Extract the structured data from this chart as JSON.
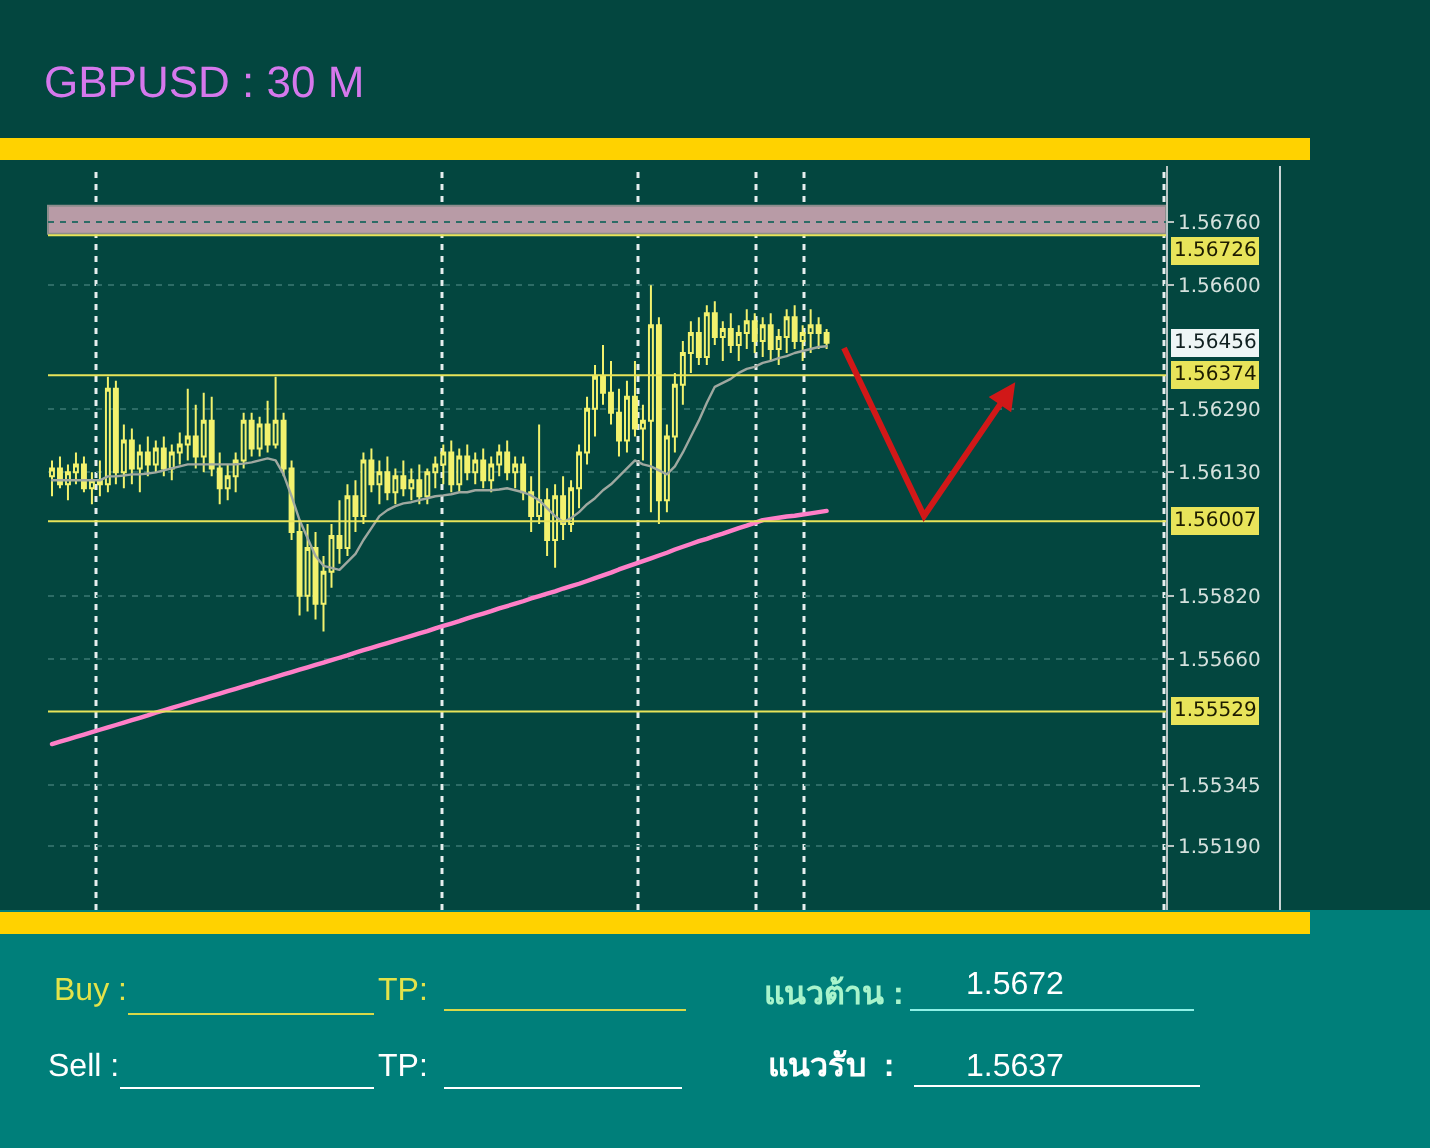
{
  "chart_data": {
    "type": "candlestick",
    "title": "GBPUSD : 30 M",
    "categories": [
      null,
      null,
      null,
      null,
      null,
      null,
      null,
      null,
      null,
      null,
      null,
      null,
      null,
      null,
      null,
      null,
      null,
      null,
      null,
      null,
      null,
      null,
      null,
      null,
      null,
      null,
      null,
      null,
      null,
      null,
      null,
      null,
      null,
      null,
      null,
      null,
      null,
      null,
      null,
      null,
      null,
      null,
      null,
      null,
      null,
      null,
      null,
      null,
      null,
      null,
      null,
      null,
      null,
      null,
      null,
      null,
      null,
      null,
      null,
      null,
      null,
      null,
      null,
      null,
      null,
      null,
      null,
      null,
      null,
      null,
      null,
      null,
      null,
      null,
      null,
      null,
      null,
      null,
      null,
      null,
      null,
      null,
      null,
      null,
      null,
      null,
      null,
      null,
      null,
      null,
      null,
      null,
      null,
      null,
      null,
      null,
      null,
      null,
      null,
      null,
      null,
      null,
      null,
      null,
      null,
      null,
      null,
      null,
      null,
      null,
      null,
      null,
      null,
      null,
      null,
      null,
      null,
      null,
      null,
      null,
      null,
      null,
      null,
      null,
      null,
      null,
      null,
      null,
      null,
      null,
      null,
      null,
      null,
      null,
      null,
      null,
      null,
      null,
      null,
      null
    ],
    "color": "#f2f26e",
    "ohlc": [
      [
        1.5612,
        1.5616,
        1.5607,
        1.5614
      ],
      [
        1.5614,
        1.5617,
        1.5609,
        1.561
      ],
      [
        1.561,
        1.5615,
        1.5606,
        1.5613
      ],
      [
        1.5613,
        1.5618,
        1.561,
        1.5615
      ],
      [
        1.5615,
        1.5617,
        1.5608,
        1.5609
      ],
      [
        1.5609,
        1.5613,
        1.5605,
        1.5611
      ],
      [
        1.5611,
        1.5616,
        1.5607,
        1.561
      ],
      [
        1.561,
        1.5637,
        1.5608,
        1.5634
      ],
      [
        1.5634,
        1.5636,
        1.561,
        1.5613
      ],
      [
        1.5613,
        1.5625,
        1.5609,
        1.5621
      ],
      [
        1.5621,
        1.5624,
        1.561,
        1.5614
      ],
      [
        1.5614,
        1.562,
        1.5608,
        1.5618
      ],
      [
        1.5618,
        1.5622,
        1.5612,
        1.5615
      ],
      [
        1.5615,
        1.5621,
        1.5613,
        1.5619
      ],
      [
        1.5619,
        1.5622,
        1.5612,
        1.5614
      ],
      [
        1.5614,
        1.562,
        1.5611,
        1.5618
      ],
      [
        1.5618,
        1.5623,
        1.5615,
        1.562
      ],
      [
        1.562,
        1.5634,
        1.5616,
        1.5622
      ],
      [
        1.5622,
        1.563,
        1.5614,
        1.5617
      ],
      [
        1.5617,
        1.5633,
        1.5613,
        1.5626
      ],
      [
        1.5626,
        1.5632,
        1.5612,
        1.5614
      ],
      [
        1.5614,
        1.5618,
        1.5605,
        1.5609
      ],
      [
        1.5609,
        1.5615,
        1.5606,
        1.5612
      ],
      [
        1.5612,
        1.5618,
        1.5608,
        1.5616
      ],
      [
        1.5616,
        1.5628,
        1.5614,
        1.5626
      ],
      [
        1.5626,
        1.5628,
        1.5617,
        1.5619
      ],
      [
        1.5619,
        1.5627,
        1.5617,
        1.5625
      ],
      [
        1.5625,
        1.5631,
        1.5618,
        1.562
      ],
      [
        1.562,
        1.5637,
        1.5619,
        1.5626
      ],
      [
        1.5626,
        1.5628,
        1.5612,
        1.5614
      ],
      [
        1.5614,
        1.5616,
        1.5596,
        1.5598
      ],
      [
        1.5598,
        1.5601,
        1.5577,
        1.5582
      ],
      [
        1.5582,
        1.56,
        1.5578,
        1.5594
      ],
      [
        1.5594,
        1.5598,
        1.5576,
        1.558
      ],
      [
        1.558,
        1.5592,
        1.5573,
        1.5588
      ],
      [
        1.5588,
        1.56,
        1.5584,
        1.5597
      ],
      [
        1.5597,
        1.5606,
        1.559,
        1.5594
      ],
      [
        1.5594,
        1.561,
        1.5592,
        1.5607
      ],
      [
        1.5607,
        1.5611,
        1.5598,
        1.5602
      ],
      [
        1.5602,
        1.5618,
        1.56,
        1.5616
      ],
      [
        1.5616,
        1.5619,
        1.5608,
        1.561
      ],
      [
        1.561,
        1.5616,
        1.5605,
        1.5613
      ],
      [
        1.5613,
        1.5617,
        1.5606,
        1.5608
      ],
      [
        1.5608,
        1.5614,
        1.5605,
        1.5612
      ],
      [
        1.5612,
        1.5616,
        1.5607,
        1.5609
      ],
      [
        1.5609,
        1.5614,
        1.5606,
        1.5611
      ],
      [
        1.5611,
        1.5615,
        1.5605,
        1.5607
      ],
      [
        1.5607,
        1.5614,
        1.5605,
        1.5613
      ],
      [
        1.5613,
        1.5617,
        1.5609,
        1.5615
      ],
      [
        1.5615,
        1.562,
        1.561,
        1.5618
      ],
      [
        1.5618,
        1.5621,
        1.5608,
        1.561
      ],
      [
        1.561,
        1.5619,
        1.5608,
        1.5617
      ],
      [
        1.5617,
        1.562,
        1.5611,
        1.5613
      ],
      [
        1.5613,
        1.5618,
        1.561,
        1.5616
      ],
      [
        1.5616,
        1.5619,
        1.5609,
        1.5611
      ],
      [
        1.5611,
        1.5617,
        1.5608,
        1.5615
      ],
      [
        1.5615,
        1.562,
        1.5612,
        1.5618
      ],
      [
        1.5618,
        1.5621,
        1.5611,
        1.5613
      ],
      [
        1.5613,
        1.5617,
        1.5609,
        1.5615
      ],
      [
        1.5615,
        1.5617,
        1.5606,
        1.5608
      ],
      [
        1.5608,
        1.5612,
        1.5598,
        1.5602
      ],
      [
        1.5602,
        1.5625,
        1.56,
        1.5606
      ],
      [
        1.5606,
        1.5609,
        1.5592,
        1.5596
      ],
      [
        1.5596,
        1.561,
        1.5589,
        1.5607
      ],
      [
        1.5607,
        1.5612,
        1.5596,
        1.56
      ],
      [
        1.56,
        1.5611,
        1.5598,
        1.5609
      ],
      [
        1.5609,
        1.562,
        1.5604,
        1.5618
      ],
      [
        1.5618,
        1.5632,
        1.5615,
        1.5629
      ],
      [
        1.5629,
        1.564,
        1.5622,
        1.5637
      ],
      [
        1.5637,
        1.5645,
        1.563,
        1.5633
      ],
      [
        1.5633,
        1.5641,
        1.5625,
        1.5628
      ],
      [
        1.5628,
        1.5634,
        1.5617,
        1.5621
      ],
      [
        1.5621,
        1.5636,
        1.5618,
        1.5632
      ],
      [
        1.5632,
        1.5641,
        1.5622,
        1.5624
      ],
      [
        1.5624,
        1.563,
        1.5616,
        1.5626
      ],
      [
        1.5626,
        1.566,
        1.5603,
        1.565
      ],
      [
        1.565,
        1.5652,
        1.56,
        1.5606
      ],
      [
        1.5606,
        1.5625,
        1.5603,
        1.5622
      ],
      [
        1.5622,
        1.5638,
        1.5618,
        1.5635
      ],
      [
        1.5635,
        1.5646,
        1.563,
        1.5643
      ],
      [
        1.5643,
        1.5651,
        1.5638,
        1.5648
      ],
      [
        1.5648,
        1.5652,
        1.564,
        1.5642
      ],
      [
        1.5642,
        1.5655,
        1.564,
        1.5653
      ],
      [
        1.5653,
        1.5656,
        1.5645,
        1.5647
      ],
      [
        1.5647,
        1.5651,
        1.5641,
        1.5649
      ],
      [
        1.5649,
        1.5653,
        1.5643,
        1.5645
      ],
      [
        1.5645,
        1.565,
        1.5641,
        1.5648
      ],
      [
        1.5648,
        1.5654,
        1.5644,
        1.5651
      ],
      [
        1.5651,
        1.5653,
        1.5643,
        1.5646
      ],
      [
        1.5646,
        1.5652,
        1.5642,
        1.565
      ],
      [
        1.565,
        1.5653,
        1.5641,
        1.5644
      ],
      [
        1.5644,
        1.5649,
        1.564,
        1.5647
      ],
      [
        1.5647,
        1.5654,
        1.5643,
        1.5652
      ],
      [
        1.5652,
        1.5655,
        1.5644,
        1.5646
      ],
      [
        1.5646,
        1.565,
        1.5641,
        1.5648
      ],
      [
        1.5648,
        1.5654,
        1.5643,
        1.565
      ],
      [
        1.565,
        1.5652,
        1.5644,
        1.5648
      ],
      [
        1.5648,
        1.5649,
        1.5644,
        1.56456
      ],
      null,
      null,
      null,
      null,
      null,
      null,
      null,
      null,
      null,
      null,
      null,
      null,
      null,
      null,
      null,
      null,
      null,
      null,
      null,
      null,
      null,
      null,
      null,
      null,
      null,
      null,
      null,
      null,
      null,
      null,
      null,
      null,
      null,
      null,
      null,
      null,
      null,
      null,
      null,
      null,
      null,
      null
    ],
    "series": [
      {
        "type": "line",
        "color": "#9fa8a0",
        "values": [
          1.5611,
          1.5611,
          1.5611,
          1.5611,
          1.5611,
          1.5611,
          1.5611,
          1.5612,
          1.5612,
          1.56122,
          1.56125,
          1.56125,
          1.56127,
          1.5613,
          1.56135,
          1.5614,
          1.56145,
          1.5615,
          1.5615,
          1.5615,
          1.5615,
          1.5615,
          1.5615,
          1.5615,
          1.56152,
          1.56155,
          1.5616,
          1.56165,
          1.5616,
          1.56125,
          1.5607,
          1.5601,
          1.55965,
          1.5592,
          1.55895,
          1.5589,
          1.55885,
          1.55905,
          1.55925,
          1.5596,
          1.5599,
          1.5602,
          1.56035,
          1.56045,
          1.56052,
          1.56055,
          1.5606,
          1.56065,
          1.5607,
          1.56072,
          1.56075,
          1.5608,
          1.5608,
          1.56085,
          1.56085,
          1.56085,
          1.56087,
          1.5609,
          1.56085,
          1.5608,
          1.56072,
          1.5606,
          1.5604,
          1.5602,
          1.56005,
          1.56015,
          1.5603,
          1.5605,
          1.56065,
          1.56085,
          1.561,
          1.5612,
          1.5614,
          1.5616,
          1.5615,
          1.56145,
          1.56135,
          1.56125,
          1.56145,
          1.5618,
          1.5622,
          1.5626,
          1.56305,
          1.56345,
          1.56355,
          1.56365,
          1.5638,
          1.5639,
          1.56395,
          1.56405,
          1.5641,
          1.56417,
          1.56422,
          1.5643,
          1.56435,
          1.5644,
          1.56445,
          1.56447,
          null,
          null,
          null,
          null,
          null,
          null,
          null,
          null,
          null,
          null,
          null,
          null,
          null,
          null,
          null,
          null,
          null,
          null,
          null,
          null,
          null,
          null,
          null,
          null,
          null,
          null,
          null,
          null,
          null,
          null,
          null,
          null,
          null,
          null,
          null,
          null,
          null,
          null,
          null,
          null,
          null,
          null
        ]
      },
      {
        "type": "line",
        "color": "#ff7fc8",
        "values": [
          1.55447,
          1.55453,
          1.55459,
          1.55465,
          1.55471,
          1.55477,
          1.55483,
          1.55489,
          1.55495,
          1.55501,
          1.55507,
          1.55513,
          1.55519,
          1.55526,
          1.55532,
          1.55538,
          1.55544,
          1.5555,
          1.55556,
          1.55562,
          1.55568,
          1.55574,
          1.5558,
          1.55586,
          1.55592,
          1.55598,
          1.55604,
          1.5561,
          1.55616,
          1.55622,
          1.55628,
          1.55634,
          1.5564,
          1.55646,
          1.55652,
          1.55658,
          1.55664,
          1.5567,
          1.55677,
          1.55683,
          1.55689,
          1.55695,
          1.55701,
          1.55707,
          1.55713,
          1.55719,
          1.55725,
          1.55731,
          1.55738,
          1.55744,
          1.5575,
          1.55756,
          1.55763,
          1.55769,
          1.55775,
          1.55781,
          1.55788,
          1.55794,
          1.558,
          1.55806,
          1.55813,
          1.55819,
          1.55825,
          1.55831,
          1.55838,
          1.55844,
          1.5585,
          1.55857,
          1.55864,
          1.55871,
          1.55878,
          1.55886,
          1.55893,
          1.559,
          1.55907,
          1.55914,
          1.55921,
          1.55928,
          1.55936,
          1.55943,
          1.5595,
          1.55957,
          1.55963,
          1.5597,
          1.55976,
          1.55983,
          1.5599,
          1.55996,
          1.56003,
          1.5601,
          1.56013,
          1.56016,
          1.56019,
          1.56021,
          1.56024,
          1.56027,
          1.5603,
          1.56033,
          null,
          null,
          null,
          null,
          null,
          null,
          null,
          null,
          null,
          null,
          null,
          null,
          null,
          null,
          null,
          null,
          null,
          null,
          null,
          null,
          null,
          null,
          null,
          null,
          null,
          null,
          null,
          null,
          null,
          null,
          null,
          null,
          null,
          null,
          null,
          null,
          null,
          null,
          null,
          null,
          null,
          null
        ]
      }
    ],
    "ylim": [
      1.5503,
      1.569
    ],
    "yticks": [
      {
        "value": 1.5676,
        "label": "1.56760"
      },
      {
        "value": 1.566,
        "label": "1.56600"
      },
      {
        "value": 1.5629,
        "label": "1.56290"
      },
      {
        "value": 1.5613,
        "label": "1.56130"
      },
      {
        "value": 1.5582,
        "label": "1.55820"
      },
      {
        "value": 1.5566,
        "label": "1.55660"
      },
      {
        "value": 1.55345,
        "label": "1.55345"
      },
      {
        "value": 1.5519,
        "label": "1.55190"
      }
    ],
    "ref_lines": [
      {
        "axis": "y",
        "value": 1.56726,
        "label": "1.56726",
        "color": "#e8e45a"
      },
      {
        "axis": "y",
        "value": 1.56374,
        "label": "1.56374",
        "color": "#e8e45a"
      },
      {
        "axis": "y",
        "value": 1.56007,
        "label": "1.56007",
        "color": "#e8e45a"
      },
      {
        "axis": "y",
        "value": 1.55529,
        "label": "1.55529",
        "color": "#e8e45a"
      }
    ],
    "bands": [
      {
        "axis": "y",
        "from": 1.5673,
        "to": 1.568,
        "color": "#b89ba6"
      }
    ],
    "annotations": [
      "Buy :",
      "TP:",
      "แนวต้าน :",
      "1.5672",
      "Sell :",
      "TP:",
      "แนวรับ  :",
      "1.5637",
      {
        "text": "1.56456",
        "y": 1.56456
      }
    ],
    "grid": "y",
    "tick_labels": "y"
  }
}
